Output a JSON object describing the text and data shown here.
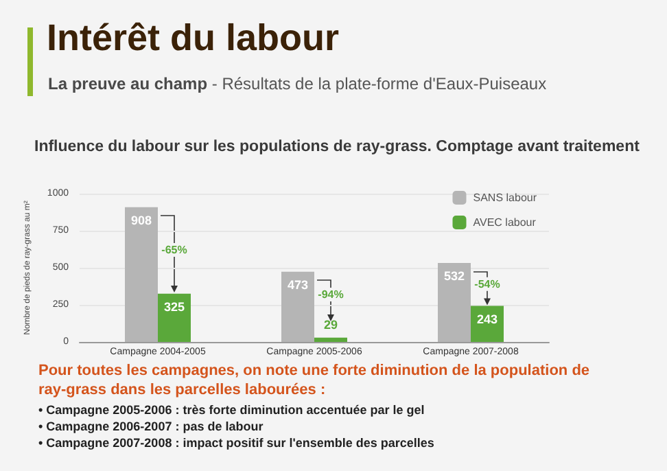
{
  "chart_data": {
    "type": "bar",
    "title": "Intérêt du labour",
    "subtitle": "La preuve au champ - Résultats de la plate-forme d'Eaux-Puiseaux",
    "ylabel": "Nombre de pieds de ray-grass au m²",
    "categories": [
      "Campagne 2004-2005",
      "Campagne 2005-2006",
      "Campagne 2007-2008"
    ],
    "series": [
      {
        "name": "SANS labour",
        "color": "#b5b5b5",
        "values": [
          908,
          473,
          532
        ]
      },
      {
        "name": "AVEC labour",
        "color": "#5aa83a",
        "values": [
          325,
          29,
          243
        ]
      }
    ],
    "data_labels": true,
    "ylim": [
      0,
      1000
    ],
    "yticks": [
      0,
      250,
      500,
      750,
      1000
    ],
    "grid": "y",
    "legend": "top right",
    "annotations": [
      "Influence du labour sur les populations de ray-grass. Comptage avant traitement",
      "Pour toutes les campagnes, on note une forte diminution de la population de ray-grass dans les parcelles labourées :",
      "• Campagne 2005-2006 : très forte diminution accentuée par le gel",
      "• Campagne 2006-2007 : pas de labour",
      "• Campagne 2007-2008 : impact positif sur l'ensemble des parcelles",
      {
        "text": "-65%",
        "x": "Campagne 2004-2005",
        "y": 620
      },
      {
        "text": "-94%",
        "x": "Campagne 2005-2006",
        "y": 320
      },
      {
        "text": "-54%",
        "x": "Campagne 2007-2008",
        "y": 390
      }
    ]
  }
}
